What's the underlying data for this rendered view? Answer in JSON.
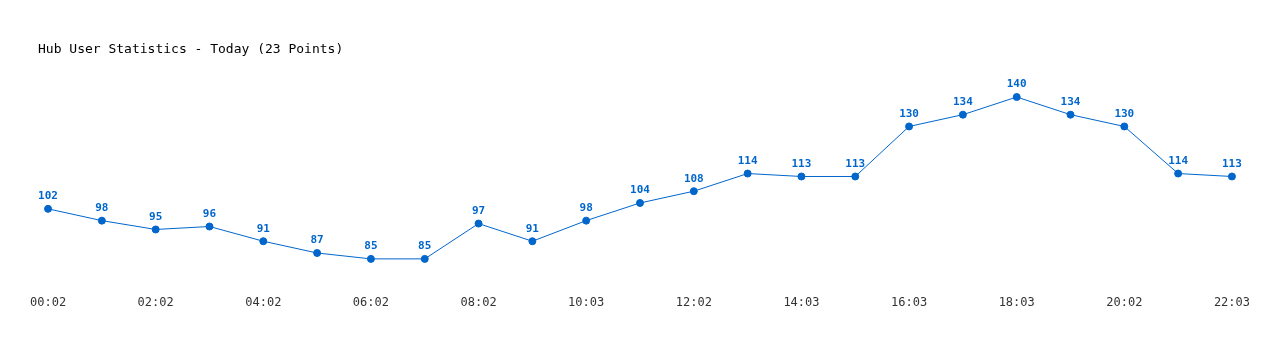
{
  "chart_data": {
    "type": "line",
    "title": "Hub User Statistics - Today (23 Points)",
    "categories": [
      "00:02",
      null,
      "02:02",
      null,
      "04:02",
      null,
      "06:02",
      null,
      "08:02",
      null,
      "10:03",
      null,
      "12:02",
      null,
      "14:03",
      null,
      "16:03",
      null,
      "18:03",
      null,
      "20:02",
      null,
      "22:03"
    ],
    "series": [
      {
        "color": "#0066cc",
        "values": [
          102,
          98,
          95,
          96,
          91,
          87,
          85,
          85,
          97,
          91,
          98,
          104,
          108,
          114,
          113,
          113,
          130,
          134,
          140,
          134,
          130,
          114,
          113
        ]
      }
    ],
    "data_labels": true,
    "marker": "circle",
    "line_style": "solid"
  }
}
